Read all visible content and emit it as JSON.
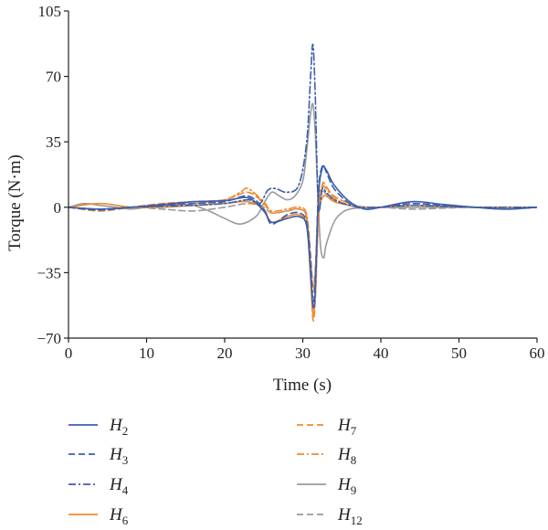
{
  "chart_data": {
    "type": "line",
    "title": "",
    "xlabel": "Time (s)",
    "ylabel": "Torque (N·m)",
    "xlim": [
      0,
      60
    ],
    "ylim": [
      -70,
      105
    ],
    "xticks": [
      "0",
      "10",
      "20",
      "30",
      "40",
      "50",
      "60"
    ],
    "yticks": [
      "−70",
      "−35",
      "0",
      "35",
      "70",
      "105"
    ],
    "grid": false,
    "legend_position": "bottom",
    "series": [
      {
        "name": "H2",
        "base": "H",
        "sub": "2",
        "color": "#3b5fad",
        "dash": "",
        "x": [
          0,
          4,
          8,
          12,
          16,
          20,
          23,
          25,
          26,
          28,
          29.5,
          30.5,
          31,
          31.3,
          31.6,
          32,
          32.5,
          33,
          34,
          36,
          38,
          40,
          44,
          48,
          52,
          56,
          60
        ],
        "y": [
          0,
          -1,
          0,
          1.5,
          3,
          3.5,
          5,
          -2,
          -8,
          -6,
          -5,
          -10,
          -35,
          -53,
          -45,
          5,
          21,
          20,
          12,
          3,
          -1,
          0,
          3,
          1.5,
          0,
          -1,
          0
        ]
      },
      {
        "name": "H3",
        "base": "H",
        "sub": "3",
        "color": "#3b5fad",
        "dash": "7,4",
        "x": [
          0,
          4,
          8,
          12,
          16,
          20,
          23,
          25,
          26,
          28,
          29.5,
          30.5,
          31,
          31.3,
          31.6,
          32,
          32.5,
          33,
          34,
          36,
          38,
          40,
          44,
          48,
          52,
          56,
          60
        ],
        "y": [
          0,
          -1.5,
          0,
          1,
          2,
          3,
          6,
          -1,
          -9,
          -4,
          -3,
          -8,
          -30,
          -50,
          -40,
          8,
          22,
          19,
          10,
          2,
          -1,
          0,
          2,
          1,
          0,
          -1,
          0
        ]
      },
      {
        "name": "H4",
        "base": "H",
        "sub": "4",
        "color": "#3b5fad",
        "dash": "8,3,2,3",
        "x": [
          0,
          4,
          8,
          12,
          16,
          20,
          23,
          24.5,
          25.5,
          26.5,
          28,
          29.5,
          30.5,
          31,
          31.3,
          31.6,
          32,
          32.5,
          33,
          34,
          36,
          38,
          40,
          44,
          48,
          52,
          56,
          60
        ],
        "y": [
          0,
          -1,
          0,
          0.5,
          1,
          2,
          4,
          2,
          9,
          10,
          8,
          12,
          35,
          70,
          87,
          60,
          0,
          10,
          8,
          4,
          1,
          0,
          0,
          1,
          0.5,
          0,
          0,
          0
        ]
      },
      {
        "name": "H6",
        "base": "H",
        "sub": "6",
        "color": "#f08a30",
        "dash": "",
        "x": [
          0,
          4,
          8,
          12,
          16,
          20,
          23,
          25,
          26,
          28,
          29.5,
          30.5,
          31,
          31.3,
          31.6,
          32,
          32.5,
          33,
          34,
          36,
          38,
          40,
          44,
          48,
          52,
          56,
          60
        ],
        "y": [
          0,
          2,
          0,
          0,
          1,
          2,
          3,
          -1,
          -8,
          -5,
          -4,
          -10,
          -38,
          -57,
          -47,
          -5,
          5,
          6,
          3,
          1,
          0,
          0,
          1,
          0.5,
          0,
          0,
          0
        ]
      },
      {
        "name": "H7",
        "base": "H",
        "sub": "7",
        "color": "#f08a30",
        "dash": "7,4",
        "x": [
          0,
          4,
          8,
          12,
          16,
          20,
          23,
          25,
          26,
          28,
          29.5,
          30.5,
          31,
          31.3,
          31.6,
          32,
          32.5,
          33,
          34,
          36,
          38,
          40,
          44,
          48,
          52,
          56,
          60
        ],
        "y": [
          0,
          -2,
          0,
          2,
          3,
          4,
          8,
          2,
          -3,
          -2,
          -1,
          -6,
          -35,
          -60,
          -50,
          -8,
          12,
          11,
          6,
          2,
          0,
          0,
          1,
          0.5,
          0,
          0,
          0
        ]
      },
      {
        "name": "H8",
        "base": "H",
        "sub": "8",
        "color": "#f08a30",
        "dash": "8,3,2,3",
        "x": [
          0,
          4,
          8,
          12,
          16,
          20,
          22,
          23,
          25,
          26,
          28,
          29.5,
          30.5,
          31,
          31.3,
          31.6,
          32,
          32.5,
          33,
          34,
          36,
          38,
          40,
          44,
          48,
          52,
          56,
          60
        ],
        "y": [
          0,
          -1,
          0,
          1,
          2,
          4,
          8,
          10,
          3,
          -2,
          -1,
          0,
          -4,
          -28,
          -45,
          -35,
          2,
          11,
          10,
          5,
          1,
          0,
          0,
          1,
          0.5,
          0,
          0,
          0
        ]
      },
      {
        "name": "H9",
        "base": "H",
        "sub": "9",
        "color": "#9a9a9a",
        "dash": "",
        "x": [
          0,
          2,
          4,
          6,
          8,
          10,
          12,
          14,
          16,
          18,
          20,
          22,
          24,
          25,
          26,
          27,
          28,
          29,
          30,
          30.5,
          31,
          31.3,
          31.6,
          32,
          32.3,
          32.7,
          33,
          34,
          35,
          36,
          38,
          40,
          42,
          44,
          46,
          48,
          50,
          52,
          54,
          56,
          58,
          60
        ],
        "y": [
          0,
          2,
          1,
          0,
          -1,
          0,
          1,
          2,
          1,
          -2,
          -6,
          -9,
          -5,
          2,
          8,
          6,
          4,
          6,
          14,
          30,
          50,
          55,
          40,
          0,
          -22,
          -27,
          -20,
          -8,
          -3,
          -1,
          0,
          0,
          0,
          0,
          0,
          0,
          0,
          0,
          0,
          0,
          0,
          0
        ]
      },
      {
        "name": "H12",
        "base": "H",
        "sub": "12",
        "color": "#9a9a9a",
        "dash": "7,4",
        "x": [
          0,
          4,
          8,
          12,
          16,
          20,
          23,
          25,
          26,
          28,
          29.5,
          30.5,
          31,
          31.3,
          31.6,
          32,
          32.5,
          33,
          34,
          36,
          38,
          40,
          44,
          48,
          52,
          56,
          60
        ],
        "y": [
          0,
          -1,
          0,
          -1,
          -2,
          0,
          2,
          0,
          -3,
          -2,
          -1,
          -5,
          -25,
          -42,
          -33,
          -2,
          8,
          7,
          4,
          1,
          0,
          0,
          -1,
          -0.5,
          0,
          0,
          0
        ]
      }
    ]
  }
}
